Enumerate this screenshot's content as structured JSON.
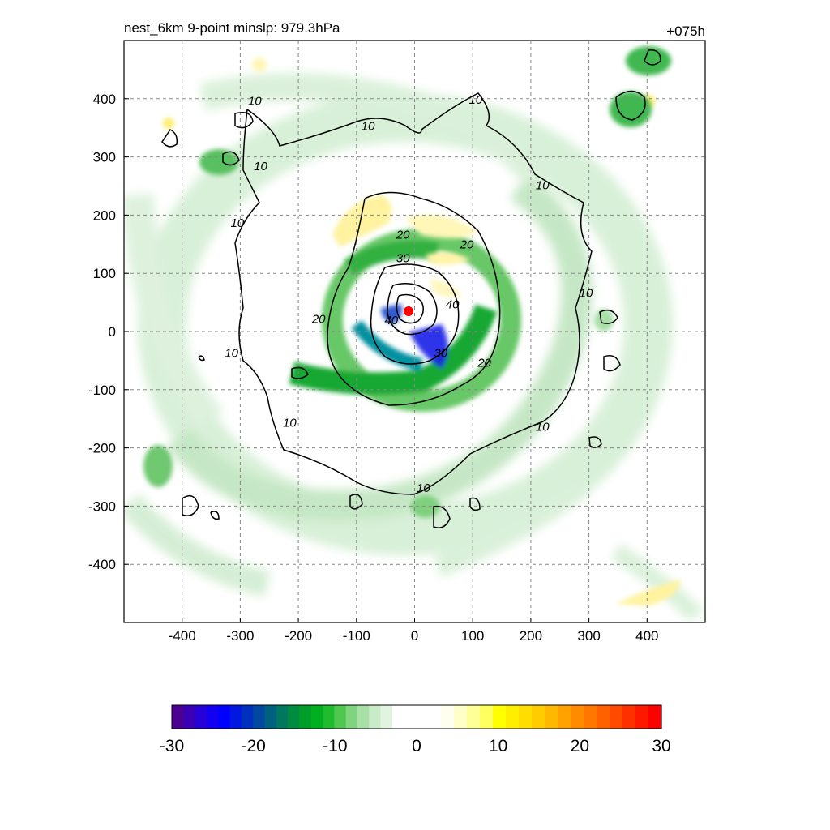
{
  "chart_data": {
    "type": "contour",
    "title_left": "nest_6km  9-point minslp: 979.3hPa",
    "title_right": "+075h",
    "xlim": [
      -500,
      500
    ],
    "ylim": [
      -500,
      500
    ],
    "x_ticks": [
      -400,
      -300,
      -200,
      -100,
      0,
      100,
      200,
      300,
      400
    ],
    "y_ticks": [
      -400,
      -300,
      -200,
      -100,
      0,
      100,
      200,
      300,
      400
    ],
    "grid": true,
    "storm_center": [
      -10,
      35
    ],
    "colorbar": {
      "range": [
        -30,
        30
      ],
      "tick_values": [
        -30,
        -20,
        -10,
        0,
        10,
        20,
        30
      ],
      "tick_labels": [
        "-30",
        "-20",
        "-10",
        "0",
        "10",
        "20",
        "30"
      ],
      "colors_neg": [
        "#4b0090",
        "#3a00b5",
        "#2800d8",
        "#1400f0",
        "#0000ff",
        "#0018e0",
        "#0030c0",
        "#0048a0",
        "#006080",
        "#007860",
        "#008c40",
        "#009e28",
        "#00b020",
        "#20bc30",
        "#50c850",
        "#80d480",
        "#a8e0a8",
        "#c8ecc8",
        "#e0f4e0"
      ],
      "colors_pos": [
        "#fffff0",
        "#ffffc8",
        "#ffff98",
        "#ffff60",
        "#ffff00",
        "#ffee00",
        "#ffdd00",
        "#ffcc00",
        "#ffb800",
        "#ffa200",
        "#ff8c00",
        "#ff7600",
        "#ff6000",
        "#ff4a00",
        "#ff3000",
        "#ff1800",
        "#ff0000"
      ]
    },
    "contour_labels": [
      {
        "text": "10",
        "x": -275,
        "y": 395
      },
      {
        "text": "10",
        "x": -265,
        "y": 283
      },
      {
        "text": "10",
        "x": -80,
        "y": 352
      },
      {
        "text": "10",
        "x": 105,
        "y": 397
      },
      {
        "text": "10",
        "x": 220,
        "y": 250
      },
      {
        "text": "10",
        "x": -305,
        "y": 185
      },
      {
        "text": "10",
        "x": -315,
        "y": -38
      },
      {
        "text": "10",
        "x": -215,
        "y": -158
      },
      {
        "text": "10",
        "x": 15,
        "y": -270
      },
      {
        "text": "10",
        "x": 220,
        "y": -165
      },
      {
        "text": "10",
        "x": 295,
        "y": 65
      },
      {
        "text": "20",
        "x": -20,
        "y": 165
      },
      {
        "text": "20",
        "x": 90,
        "y": 148
      },
      {
        "text": "20",
        "x": -165,
        "y": 20
      },
      {
        "text": "20",
        "x": 120,
        "y": -55
      },
      {
        "text": "30",
        "x": -20,
        "y": 125
      },
      {
        "text": "30",
        "x": 45,
        "y": -38
      },
      {
        "text": "40",
        "x": 65,
        "y": 45
      },
      {
        "text": "40",
        "x": -40,
        "y": 18
      }
    ]
  }
}
